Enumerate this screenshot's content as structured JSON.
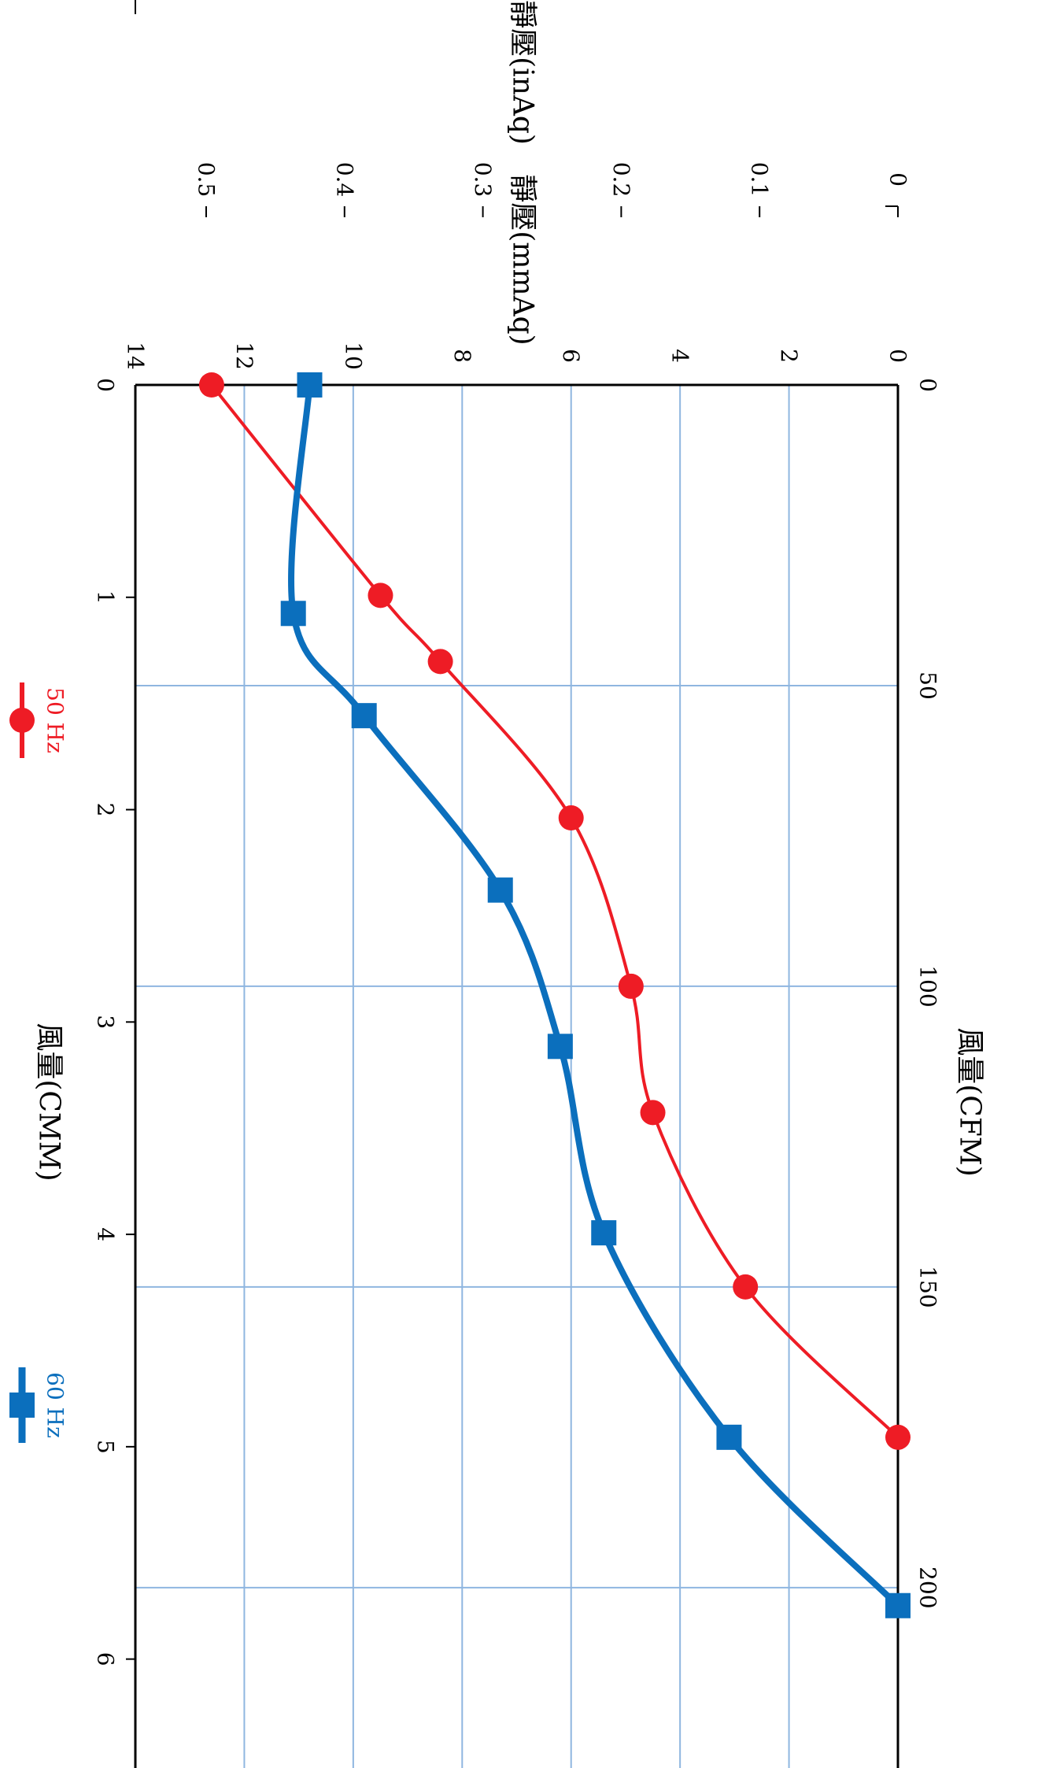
{
  "chart_data": {
    "type": "line",
    "xlabel": "風量(CFM)",
    "ylabel": "靜壓(mmAq)",
    "x_top_label": "風量(CMM)",
    "y_inaq_label": "靜壓(inAq)",
    "xlim": [
      0,
      230
    ],
    "ylim": [
      0,
      14
    ],
    "x_ticks": [
      0,
      50,
      100,
      150,
      200
    ],
    "x_tick_labels": [
      "0",
      "50",
      "100",
      "150",
      "200"
    ],
    "y_ticks": [
      0,
      2,
      4,
      6,
      8,
      10,
      12,
      14
    ],
    "y_tick_labels": [
      "0",
      "2",
      "4",
      "6",
      "8",
      "10",
      "12",
      "14"
    ],
    "cmm_ticks": [
      0,
      1,
      2,
      3,
      4,
      5,
      6
    ],
    "cmm_tick_labels": [
      "0",
      "1",
      "2",
      "3",
      "4",
      "5",
      "6"
    ],
    "inaq_ticks": [
      0,
      0.1,
      0.2,
      0.3,
      0.4,
      0.5
    ],
    "inaq_tick_labels": [
      "0",
      "0.1",
      "0.2",
      "0.3",
      "0.4",
      "0.5"
    ],
    "grid": true,
    "legend_position": "right",
    "series": [
      {
        "name": "50 Hz",
        "color": "#ee1c25",
        "marker": "circle",
        "x": [
          0,
          35,
          46,
          72,
          100,
          121,
          150,
          175
        ],
        "y": [
          12.6,
          9.5,
          8.4,
          6.0,
          4.9,
          4.5,
          2.8,
          0
        ]
      },
      {
        "name": "60 Hz",
        "color": "#0b6fbd",
        "marker": "square",
        "x": [
          0,
          38,
          55,
          84,
          110,
          141,
          175,
          203
        ],
        "y": [
          10.8,
          11.1,
          9.8,
          7.3,
          6.2,
          5.4,
          3.1,
          0
        ]
      }
    ]
  }
}
